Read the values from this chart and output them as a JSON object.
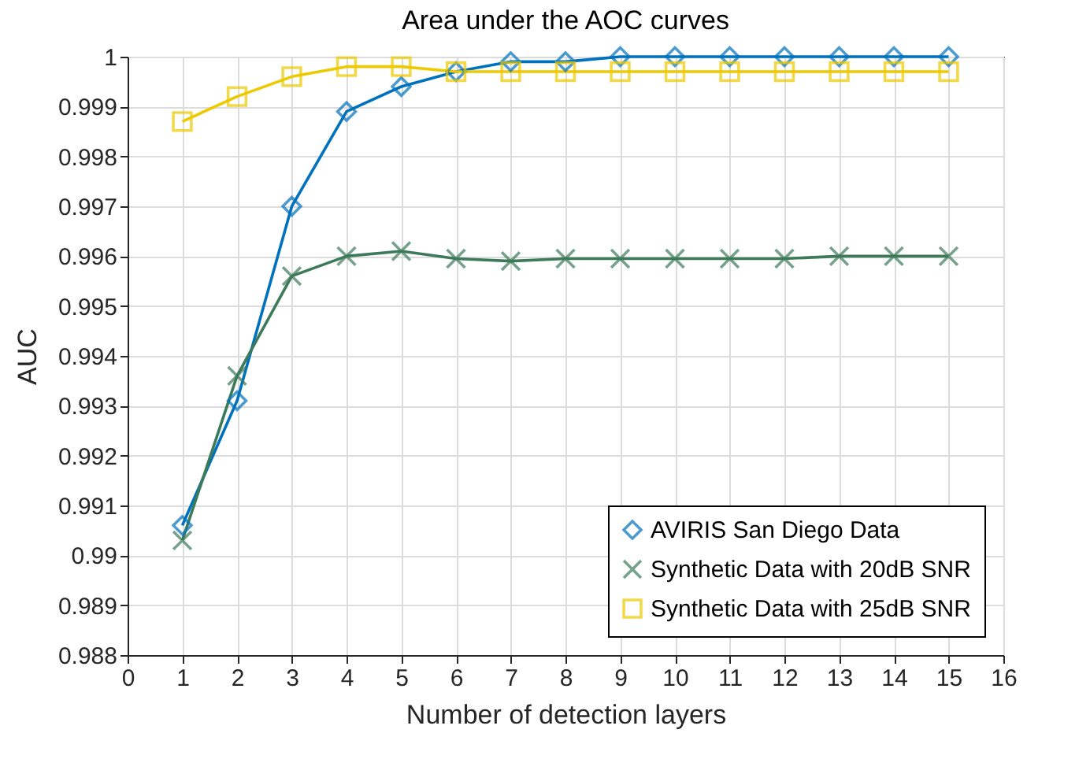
{
  "chart_data": {
    "type": "line",
    "title": "Area under the AOC curves",
    "xlabel": "Number of detection layers",
    "ylabel": "AUC",
    "x": [
      1,
      2,
      3,
      4,
      5,
      6,
      7,
      8,
      9,
      10,
      11,
      12,
      13,
      14,
      15
    ],
    "series": [
      {
        "name": "AVIRIS San Diego Data",
        "color": "#0072bd",
        "marker": "diamond",
        "values": [
          0.9906,
          0.9931,
          0.997,
          0.9989,
          0.9994,
          0.9997,
          0.9999,
          0.9999,
          1.0,
          1.0,
          1.0,
          1.0,
          1.0,
          1.0,
          1.0
        ]
      },
      {
        "name": "Synthetic Data with 20dB SNR",
        "color": "#3d7a5a",
        "marker": "cross",
        "values": [
          0.9903,
          0.9936,
          0.9956,
          0.996,
          0.9961,
          0.99595,
          0.9959,
          0.99595,
          0.99595,
          0.99595,
          0.99595,
          0.99595,
          0.996,
          0.996,
          0.996
        ]
      },
      {
        "name": "Synthetic Data with 25dB SNR",
        "color": "#edc900",
        "marker": "square",
        "values": [
          0.9987,
          0.9992,
          0.9996,
          0.9998,
          0.9998,
          0.9997,
          0.9997,
          0.9997,
          0.9997,
          0.9997,
          0.9997,
          0.9997,
          0.9997,
          0.9997,
          0.9997
        ]
      }
    ],
    "xlim": [
      0,
      16
    ],
    "xticks": [
      0,
      1,
      2,
      3,
      4,
      5,
      6,
      7,
      8,
      9,
      10,
      11,
      12,
      13,
      14,
      15,
      16
    ],
    "ylim": [
      0.988,
      1
    ],
    "yticks": [
      0.988,
      0.989,
      0.99,
      0.991,
      0.992,
      0.993,
      0.994,
      0.995,
      0.996,
      0.997,
      0.998,
      0.999,
      1
    ],
    "grid": true,
    "legend": "bottom right",
    "line_style": "solid"
  }
}
